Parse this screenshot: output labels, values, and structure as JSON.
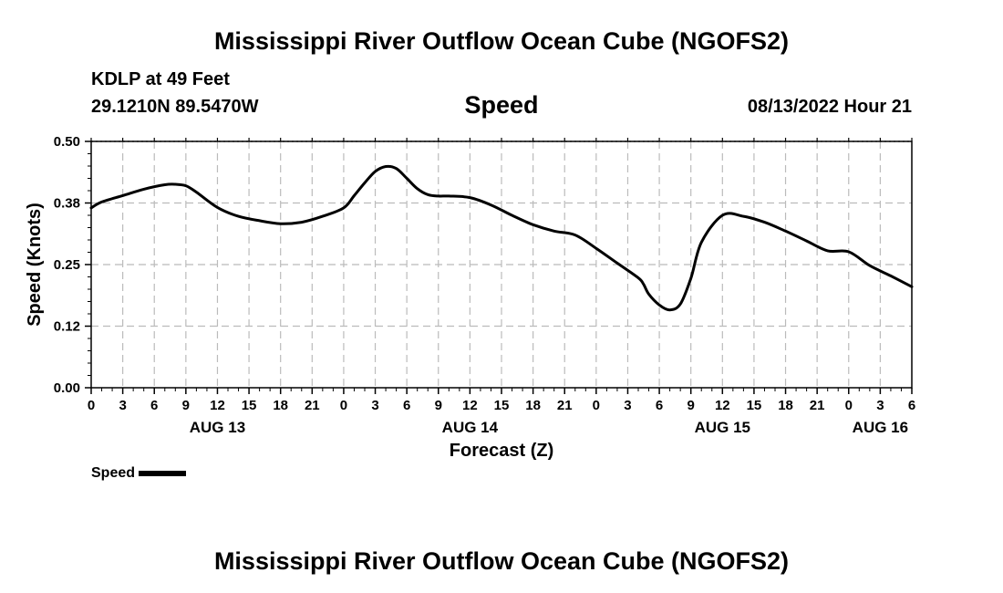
{
  "header": {
    "main_title": "Mississippi River Outflow Ocean Cube (NGOFS2)",
    "station": "KDLP at 49 Feet",
    "coordinates": "29.1210N  89.5470W",
    "datetime": "08/13/2022 Hour 21",
    "bottom_title": "Mississippi River Outflow Ocean Cube (NGOFS2)"
  },
  "chart_data": {
    "type": "line",
    "title": "Speed",
    "xlabel": "Forecast (Z)",
    "ylabel": "Speed (Knots)",
    "x_unit": "hours",
    "xlim": [
      0,
      78
    ],
    "ylim": [
      0,
      0.5
    ],
    "y_ticks": [
      {
        "value": 0.0,
        "label": "0.00"
      },
      {
        "value": 0.125,
        "label": "0.12"
      },
      {
        "value": 0.25,
        "label": "0.25"
      },
      {
        "value": 0.375,
        "label": "0.38"
      },
      {
        "value": 0.5,
        "label": "0.50"
      }
    ],
    "x_ticks": [
      {
        "value": 0,
        "label": "0"
      },
      {
        "value": 3,
        "label": "3"
      },
      {
        "value": 6,
        "label": "6"
      },
      {
        "value": 9,
        "label": "9"
      },
      {
        "value": 12,
        "label": "12"
      },
      {
        "value": 15,
        "label": "15"
      },
      {
        "value": 18,
        "label": "18"
      },
      {
        "value": 21,
        "label": "21"
      },
      {
        "value": 24,
        "label": "0"
      },
      {
        "value": 27,
        "label": "3"
      },
      {
        "value": 30,
        "label": "6"
      },
      {
        "value": 33,
        "label": "9"
      },
      {
        "value": 36,
        "label": "12"
      },
      {
        "value": 39,
        "label": "15"
      },
      {
        "value": 42,
        "label": "18"
      },
      {
        "value": 45,
        "label": "21"
      },
      {
        "value": 48,
        "label": "0"
      },
      {
        "value": 51,
        "label": "3"
      },
      {
        "value": 54,
        "label": "6"
      },
      {
        "value": 57,
        "label": "9"
      },
      {
        "value": 60,
        "label": "12"
      },
      {
        "value": 63,
        "label": "15"
      },
      {
        "value": 66,
        "label": "18"
      },
      {
        "value": 69,
        "label": "21"
      },
      {
        "value": 72,
        "label": "0"
      },
      {
        "value": 75,
        "label": "3"
      },
      {
        "value": 78,
        "label": "6"
      }
    ],
    "date_labels": [
      {
        "value": 12,
        "label": "AUG 13"
      },
      {
        "value": 36,
        "label": "AUG 14"
      },
      {
        "value": 60,
        "label": "AUG 15"
      },
      {
        "value": 75,
        "label": "AUG 16"
      }
    ],
    "grid": true,
    "legend": "bottom-left",
    "series": [
      {
        "name": "Speed",
        "color": "#000000",
        "x": [
          0,
          1,
          3,
          5,
          7,
          8,
          9,
          10,
          12,
          14,
          16,
          18,
          20,
          22,
          24,
          25,
          26,
          27,
          28,
          29,
          30,
          31,
          32,
          33,
          34,
          36,
          38,
          40,
          42,
          44,
          46,
          48,
          50,
          52,
          52.5,
          53,
          54,
          55,
          56,
          57,
          58,
          60,
          62,
          64,
          66,
          68,
          70,
          72,
          74,
          76,
          78
        ],
        "y": [
          0.365,
          0.377,
          0.39,
          0.403,
          0.412,
          0.413,
          0.41,
          0.397,
          0.366,
          0.348,
          0.339,
          0.333,
          0.336,
          0.348,
          0.365,
          0.39,
          0.416,
          0.439,
          0.449,
          0.445,
          0.425,
          0.404,
          0.392,
          0.389,
          0.389,
          0.386,
          0.371,
          0.35,
          0.331,
          0.318,
          0.31,
          0.283,
          0.253,
          0.223,
          0.21,
          0.19,
          0.168,
          0.158,
          0.17,
          0.222,
          0.295,
          0.35,
          0.348,
          0.336,
          0.318,
          0.298,
          0.278,
          0.276,
          0.248,
          0.227,
          0.205
        ]
      }
    ]
  }
}
